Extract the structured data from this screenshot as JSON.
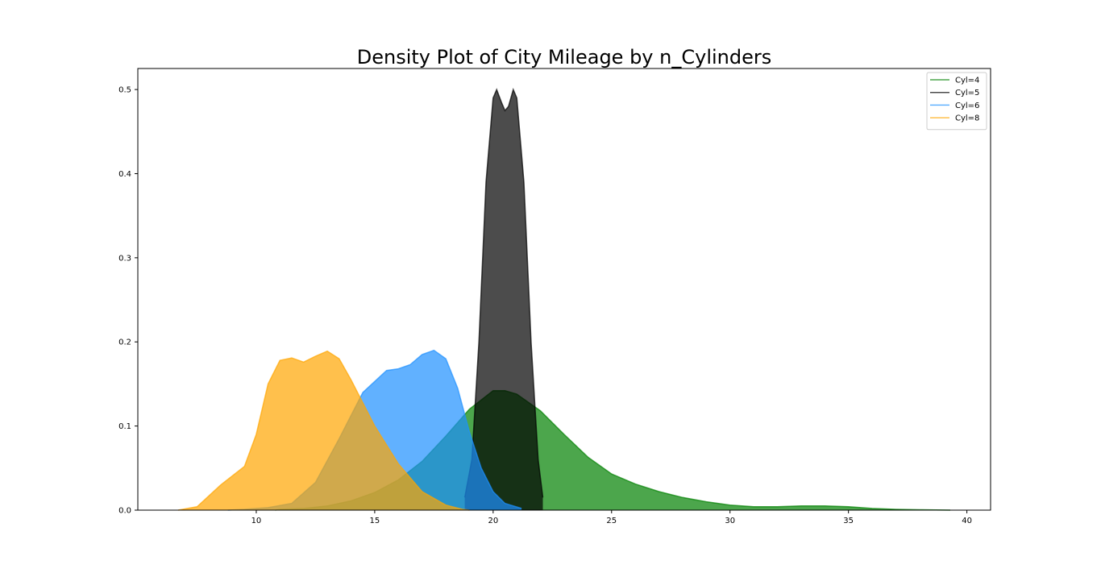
{
  "chart_data": {
    "type": "area",
    "title": "Density Plot of City Mileage by n_Cylinders",
    "xlabel": "",
    "ylabel": "",
    "xlim": [
      5,
      41
    ],
    "ylim": [
      0,
      0.525
    ],
    "xticks": [
      10,
      15,
      20,
      25,
      30,
      35,
      40
    ],
    "yticks": [
      0.0,
      0.1,
      0.2,
      0.3,
      0.4,
      0.5
    ],
    "grid": false,
    "legend_position": "top-right",
    "series": [
      {
        "name": "Cyl=4",
        "color": "#008000",
        "points": [
          [
            10.8,
            0
          ],
          [
            11,
            0.001
          ],
          [
            12,
            0.002
          ],
          [
            13,
            0.005
          ],
          [
            14,
            0.011
          ],
          [
            15,
            0.021
          ],
          [
            16,
            0.036
          ],
          [
            17,
            0.058
          ],
          [
            18,
            0.088
          ],
          [
            19,
            0.12
          ],
          [
            20,
            0.142
          ],
          [
            20.5,
            0.142
          ],
          [
            21,
            0.138
          ],
          [
            22,
            0.118
          ],
          [
            23,
            0.09
          ],
          [
            24,
            0.063
          ],
          [
            25,
            0.043
          ],
          [
            26,
            0.031
          ],
          [
            27,
            0.022
          ],
          [
            28,
            0.015
          ],
          [
            29,
            0.01
          ],
          [
            30,
            0.006
          ],
          [
            31,
            0.004
          ],
          [
            32,
            0.004
          ],
          [
            33,
            0.005
          ],
          [
            34,
            0.005
          ],
          [
            35,
            0.004
          ],
          [
            36,
            0.002
          ],
          [
            37,
            0.001
          ],
          [
            38,
            0.0005
          ],
          [
            39.3,
            0
          ]
        ]
      },
      {
        "name": "Cyl=5",
        "color": "#000000",
        "points": [
          [
            18.8,
            0.015
          ],
          [
            19.1,
            0.06
          ],
          [
            19.4,
            0.2
          ],
          [
            19.7,
            0.39
          ],
          [
            20.0,
            0.49
          ],
          [
            20.15,
            0.5
          ],
          [
            20.35,
            0.485
          ],
          [
            20.5,
            0.475
          ],
          [
            20.65,
            0.48
          ],
          [
            20.85,
            0.5
          ],
          [
            21.0,
            0.49
          ],
          [
            21.3,
            0.39
          ],
          [
            21.6,
            0.2
          ],
          [
            21.9,
            0.06
          ],
          [
            22.1,
            0.015
          ]
        ]
      },
      {
        "name": "Cyl=6",
        "color": "#1E90FF",
        "points": [
          [
            8.8,
            0
          ],
          [
            9.5,
            0.001
          ],
          [
            10.5,
            0.003
          ],
          [
            11.5,
            0.008
          ],
          [
            12.5,
            0.033
          ],
          [
            13.5,
            0.085
          ],
          [
            14.5,
            0.14
          ],
          [
            15.5,
            0.166
          ],
          [
            16.0,
            0.168
          ],
          [
            16.5,
            0.173
          ],
          [
            17.0,
            0.185
          ],
          [
            17.5,
            0.19
          ],
          [
            18.0,
            0.18
          ],
          [
            18.5,
            0.145
          ],
          [
            19.0,
            0.093
          ],
          [
            19.5,
            0.05
          ],
          [
            20.0,
            0.022
          ],
          [
            20.5,
            0.008
          ],
          [
            21.2,
            0.002
          ]
        ]
      },
      {
        "name": "Cyl=8",
        "color": "#FFA500",
        "points": [
          [
            6.7,
            0
          ],
          [
            7.5,
            0.004
          ],
          [
            8.5,
            0.03
          ],
          [
            9.5,
            0.052
          ],
          [
            10.0,
            0.09
          ],
          [
            10.5,
            0.15
          ],
          [
            11.0,
            0.178
          ],
          [
            11.5,
            0.181
          ],
          [
            12.0,
            0.176
          ],
          [
            12.5,
            0.183
          ],
          [
            13.0,
            0.189
          ],
          [
            13.5,
            0.18
          ],
          [
            14.0,
            0.155
          ],
          [
            15.0,
            0.1
          ],
          [
            16.0,
            0.055
          ],
          [
            17.0,
            0.022
          ],
          [
            18.0,
            0.006
          ],
          [
            18.7,
            0.001
          ],
          [
            19.0,
            0
          ]
        ]
      }
    ]
  }
}
